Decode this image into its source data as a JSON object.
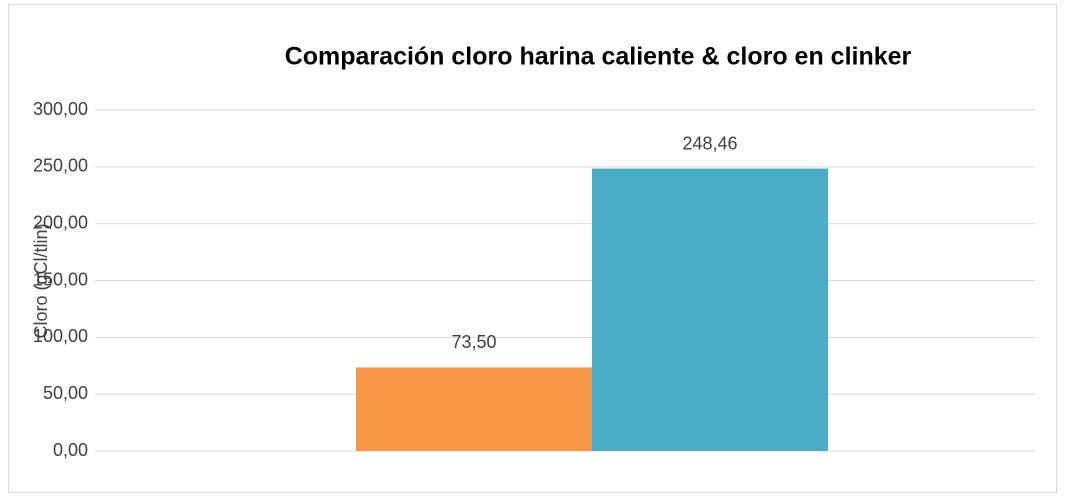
{
  "chart_data": {
    "type": "bar",
    "title": "Comparación cloro harina caliente & cloro en clinker",
    "y_label": "Cloro (gCl/tlin)",
    "categories": [
      null
    ],
    "series": [
      {
        "color": "#f79646",
        "values": [
          73.5
        ],
        "value_labels": [
          "73,50"
        ]
      },
      {
        "color": "#4bacc6",
        "values": [
          248.46
        ],
        "value_labels": [
          "248,46"
        ]
      }
    ],
    "ylim": [
      0,
      300
    ],
    "yticks": [
      {
        "value": 0,
        "label": "0,00"
      },
      {
        "value": 50,
        "label": "50,00"
      },
      {
        "value": 100,
        "label": "100,00"
      },
      {
        "value": 150,
        "label": "150,00"
      },
      {
        "value": 200,
        "label": "200,00"
      },
      {
        "value": 250,
        "label": "250,00"
      },
      {
        "value": 300,
        "label": "300,00"
      }
    ],
    "grid": true
  }
}
